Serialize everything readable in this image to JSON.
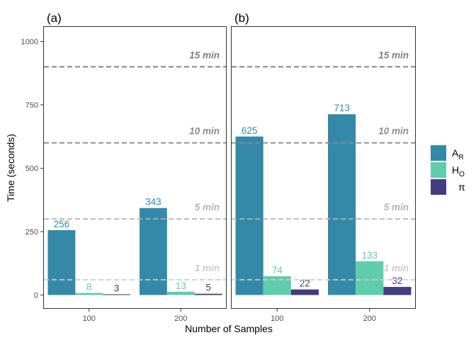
{
  "chart_data": {
    "type": "bar",
    "xlabel": "Number of Samples",
    "ylabel": "Time (seconds)",
    "ylim": [
      0,
      1050
    ],
    "yticks": [
      0,
      250,
      500,
      750,
      1000
    ],
    "categories": [
      "100",
      "200"
    ],
    "legend_position": "right",
    "legend": [
      {
        "key": "AR",
        "main": "A",
        "sub": "R",
        "color": "#3489a9"
      },
      {
        "key": "HO",
        "main": "H",
        "sub": "O",
        "color": "#5fcdac"
      },
      {
        "key": "pi",
        "main": "π",
        "sub": "",
        "color": "#423f80"
      }
    ],
    "reference_lines": [
      {
        "value": 60,
        "label": "1 min",
        "color": "#cccccc"
      },
      {
        "value": 300,
        "label": "5 min",
        "color": "#b3b3b3"
      },
      {
        "value": 600,
        "label": "10 min",
        "color": "#8c8c8c"
      },
      {
        "value": 900,
        "label": "15 min",
        "color": "#7f7f7f"
      }
    ],
    "panels": [
      {
        "label": "(a)",
        "series": [
          {
            "key": "AR",
            "values": [
              256,
              343
            ]
          },
          {
            "key": "HO",
            "values": [
              8,
              13
            ]
          },
          {
            "key": "pi",
            "values": [
              3,
              5
            ]
          }
        ]
      },
      {
        "label": "(b)",
        "series": [
          {
            "key": "AR",
            "values": [
              625,
              713
            ]
          },
          {
            "key": "HO",
            "values": [
              74,
              133
            ]
          },
          {
            "key": "pi",
            "values": [
              22,
              32
            ]
          }
        ]
      }
    ]
  }
}
